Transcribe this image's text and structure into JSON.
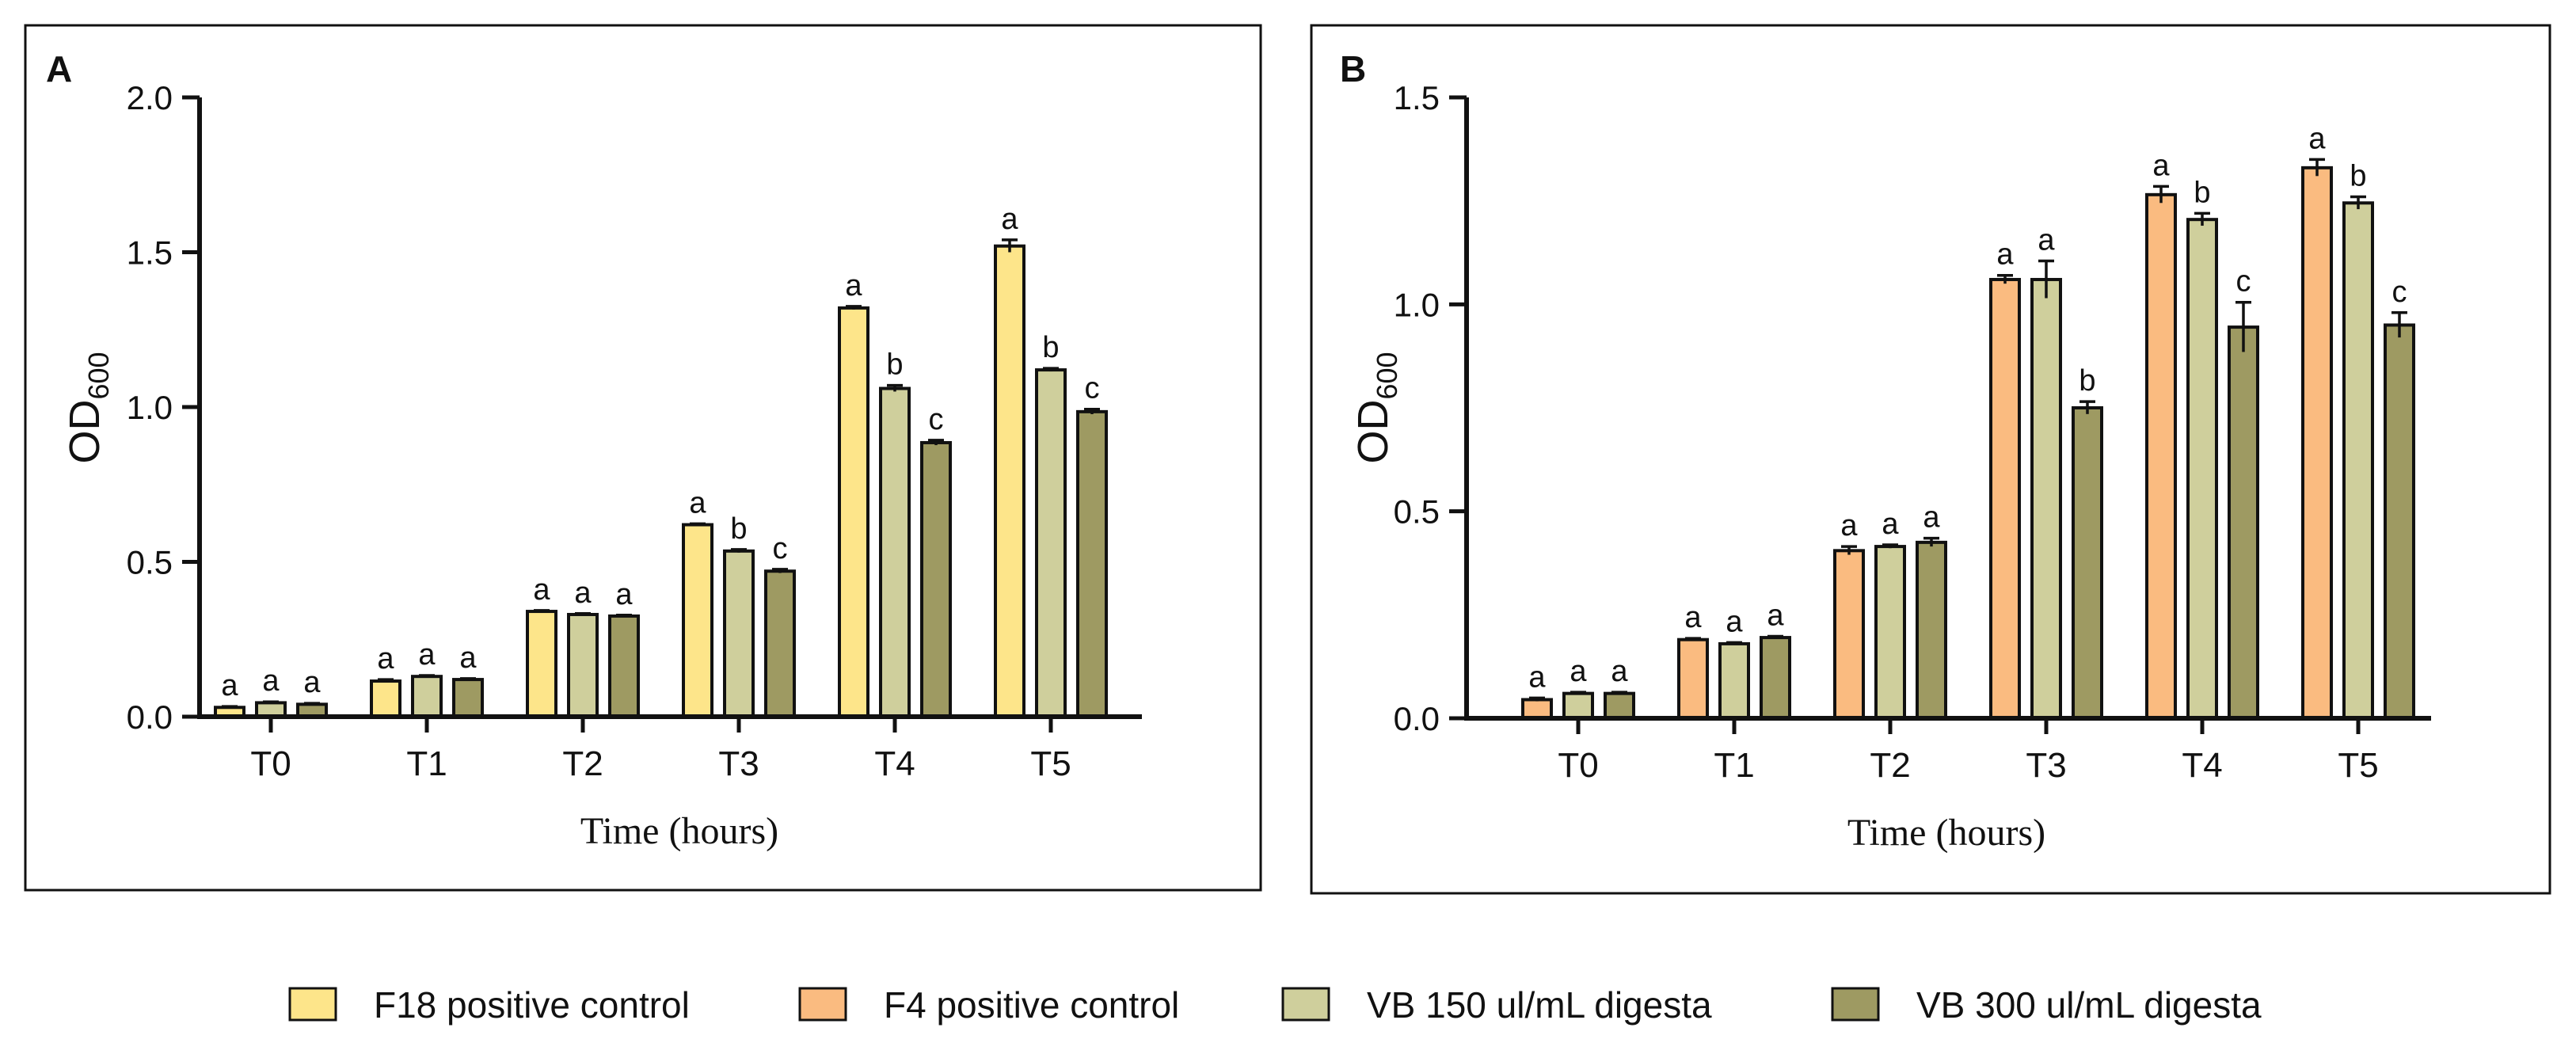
{
  "colors": {
    "F18 positive control": "#fde58a",
    "F4 positive control": "#fabb80",
    "VB 150 ul/mL digesta": "#cfcf9c",
    "VB 300 ul/mL digesta": "#9e9a62"
  },
  "legend": [
    {
      "label": "F18 positive control",
      "color": "#fde58a"
    },
    {
      "label": "F4 positive control",
      "color": "#fabb80"
    },
    {
      "label": "VB 150 ul/mL digesta",
      "color": "#cfcf9c"
    },
    {
      "label": "VB 300 ul/mL digesta",
      "color": "#9e9a62"
    }
  ],
  "chart_data": [
    {
      "type": "bar",
      "panel_label": "A",
      "xlabel": "Time (hours)",
      "ylabel_main": "OD",
      "ylabel_sub": "600",
      "ylim": [
        0,
        2.0
      ],
      "yticks": [
        "0.0",
        "0.5",
        "1.0",
        "1.5",
        "2.0"
      ],
      "categories": [
        "T0",
        "T1",
        "T2",
        "T3",
        "T4",
        "T5"
      ],
      "series": [
        {
          "name": "F18 positive control",
          "values": [
            0.03,
            0.115,
            0.34,
            0.62,
            1.32,
            1.52
          ],
          "errors": [
            0.003,
            0.005,
            0.003,
            0.003,
            0.005,
            0.02
          ],
          "letters": [
            "a",
            "a",
            "a",
            "a",
            "a",
            "a"
          ]
        },
        {
          "name": "VB 150 ul/mL digesta",
          "values": [
            0.045,
            0.13,
            0.33,
            0.535,
            1.06,
            1.12
          ],
          "errors": [
            0.003,
            0.003,
            0.003,
            0.005,
            0.01,
            0.005
          ],
          "letters": [
            "a",
            "a",
            "a",
            "b",
            "b",
            "b"
          ]
        },
        {
          "name": "VB 300 ul/mL digesta",
          "values": [
            0.04,
            0.12,
            0.325,
            0.47,
            0.885,
            0.985
          ],
          "errors": [
            0.003,
            0.003,
            0.003,
            0.006,
            0.008,
            0.008
          ],
          "letters": [
            "a",
            "a",
            "a",
            "c",
            "c",
            "c"
          ]
        }
      ]
    },
    {
      "type": "bar",
      "panel_label": "B",
      "xlabel": "Time (hours)",
      "ylabel_main": "OD",
      "ylabel_sub": "600",
      "ylim": [
        0,
        1.5
      ],
      "yticks": [
        "0.0",
        "0.5",
        "1.0",
        "1.5"
      ],
      "categories": [
        "T0",
        "T1",
        "T2",
        "T3",
        "T4",
        "T5"
      ],
      "series": [
        {
          "name": "F4 positive control",
          "values": [
            0.045,
            0.19,
            0.405,
            1.06,
            1.265,
            1.33
          ],
          "errors": [
            0.004,
            0.003,
            0.01,
            0.01,
            0.02,
            0.02
          ],
          "letters": [
            "a",
            "a",
            "a",
            "a",
            "a",
            "a"
          ]
        },
        {
          "name": "VB 150 ul/mL digesta",
          "values": [
            0.06,
            0.18,
            0.415,
            1.06,
            1.205,
            1.245
          ],
          "errors": [
            0.003,
            0.003,
            0.004,
            0.045,
            0.015,
            0.015
          ],
          "letters": [
            "a",
            "a",
            "a",
            "a",
            "b",
            "b"
          ]
        },
        {
          "name": "VB 300 ul/mL digesta",
          "values": [
            0.06,
            0.195,
            0.425,
            0.75,
            0.945,
            0.95
          ],
          "errors": [
            0.003,
            0.003,
            0.01,
            0.015,
            0.06,
            0.03
          ],
          "letters": [
            "a",
            "a",
            "a",
            "b",
            "c",
            "c"
          ]
        }
      ]
    }
  ]
}
